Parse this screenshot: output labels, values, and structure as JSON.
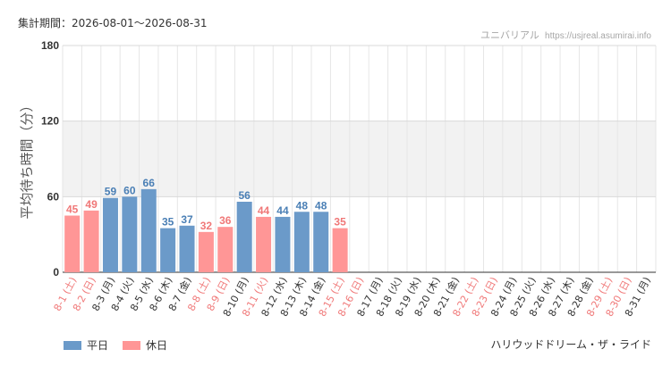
{
  "header": {
    "period_label": "集計期間：",
    "period_value": "2026-08-01～2026-08-31",
    "source_name": "ユニバリアル",
    "source_url": "https://usjreal.asumirai.info"
  },
  "footer": {
    "attraction": "ハリウッドドリーム・ザ・ライド"
  },
  "colors": {
    "weekday": "#6b9ac9",
    "holiday": "#ff9696",
    "weekday_text": "#4a7fb5",
    "holiday_text": "#f07878",
    "axis_text": "#333333",
    "grid": "#e6e6e6",
    "band": "#f2f2f2"
  },
  "chart_data": {
    "type": "bar",
    "ylabel": "平均待ち時間（分）",
    "ylim": [
      0,
      180
    ],
    "yticks": [
      0,
      60,
      120,
      180
    ],
    "shaded_band": [
      60,
      120
    ],
    "legend": [
      {
        "name": "平日",
        "type": "weekday"
      },
      {
        "name": "休日",
        "type": "holiday"
      }
    ],
    "categories": [
      "8-1 (土)",
      "8-2 (日)",
      "8-3 (月)",
      "8-4 (火)",
      "8-5 (水)",
      "8-6 (木)",
      "8-7 (金)",
      "8-8 (土)",
      "8-9 (日)",
      "8-10 (月)",
      "8-11 (火)",
      "8-12 (水)",
      "8-13 (木)",
      "8-14 (金)",
      "8-15 (土)",
      "8-16 (日)",
      "8-17 (月)",
      "8-18 (火)",
      "8-19 (水)",
      "8-20 (木)",
      "8-21 (金)",
      "8-22 (土)",
      "8-23 (日)",
      "8-24 (月)",
      "8-25 (火)",
      "8-26 (水)",
      "8-27 (木)",
      "8-28 (金)",
      "8-29 (土)",
      "8-30 (日)",
      "8-31 (月)"
    ],
    "day_type": [
      "holiday",
      "holiday",
      "weekday",
      "weekday",
      "weekday",
      "weekday",
      "weekday",
      "holiday",
      "holiday",
      "weekday",
      "holiday",
      "weekday",
      "weekday",
      "weekday",
      "holiday",
      "holiday",
      "weekday",
      "weekday",
      "weekday",
      "weekday",
      "weekday",
      "holiday",
      "holiday",
      "weekday",
      "weekday",
      "weekday",
      "weekday",
      "weekday",
      "holiday",
      "holiday",
      "weekday"
    ],
    "values": [
      45,
      49,
      59,
      60,
      66,
      35,
      37,
      32,
      36,
      56,
      44,
      44,
      48,
      48,
      35,
      null,
      null,
      null,
      null,
      null,
      null,
      null,
      null,
      null,
      null,
      null,
      null,
      null,
      null,
      null,
      null
    ]
  }
}
